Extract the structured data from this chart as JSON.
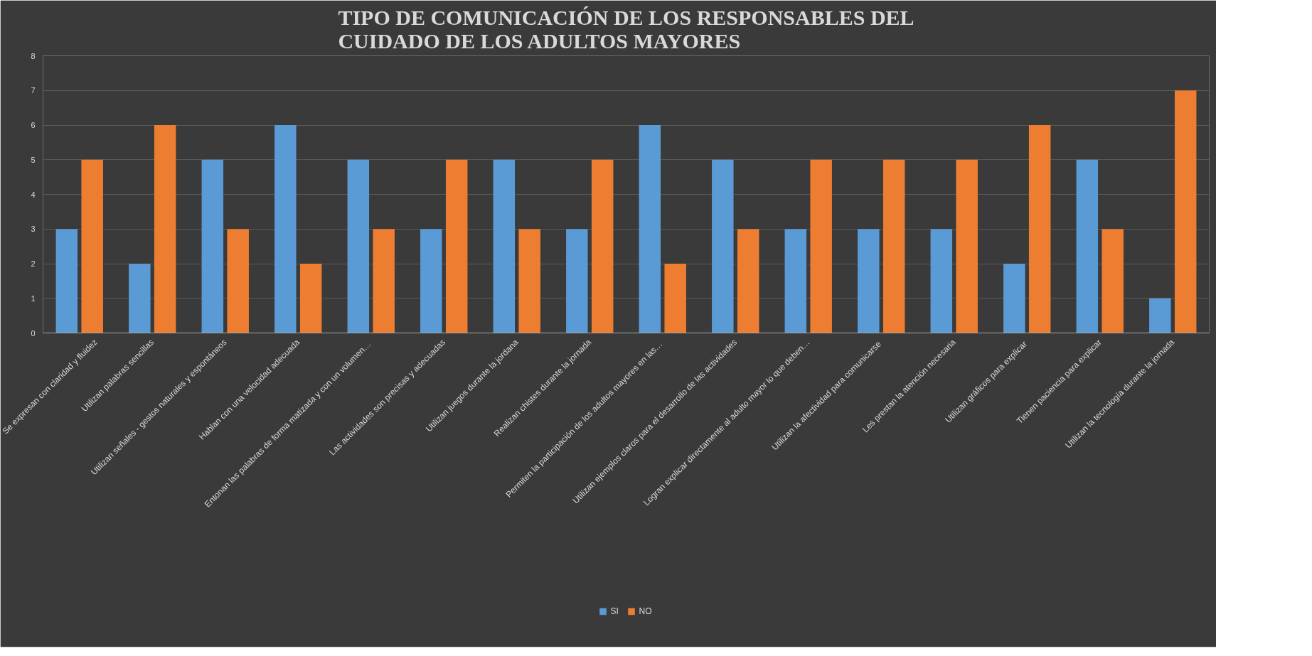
{
  "chart_data": {
    "type": "bar",
    "title": "TIPO DE COMUNICACIÓN DE LOS RESPONSABLES DEL\nCUIDADO DE LOS ADULTOS MAYORES",
    "categories": [
      "Se expresan con claridad y fluidez",
      "Utilizan palabras sencillas",
      "Utilizan señales - gestos naturales y espontáneos",
      "Hablan con una velocidad adecuada",
      "Entonan las palabras de forma matizada  y con un volumen…",
      "Las actividades son precisas y adecuadas",
      "Utilizan juegos durante la jordana",
      "Realizan chistes durante la jornada",
      "Permiten  la participación de los adultos mayores en las…",
      "Utilizan ejemplos claros para el desarrollo de las actividades",
      "Logran explicar directamente al adulto mayor lo que deben…",
      "Utilizan la afectividad  para comunicarse",
      "Les prestan la atención necesaria",
      "Utilizan gráficos para  explicar",
      "Tienen paciencia para explicar",
      "Utilizan la tecnología durante la jornada"
    ],
    "series": [
      {
        "name": "SI",
        "color": "#5b9bd5",
        "values": [
          3,
          2,
          5,
          6,
          5,
          3,
          5,
          3,
          6,
          5,
          3,
          3,
          3,
          2,
          5,
          1
        ]
      },
      {
        "name": "NO",
        "color": "#ed7d31",
        "values": [
          5,
          6,
          3,
          2,
          3,
          5,
          3,
          5,
          2,
          3,
          5,
          5,
          5,
          6,
          3,
          7
        ]
      }
    ],
    "ylim": [
      0,
      8
    ],
    "yticks": [
      0,
      1,
      2,
      3,
      4,
      5,
      6,
      7,
      8
    ],
    "grid": "y",
    "legend": "bottom"
  }
}
